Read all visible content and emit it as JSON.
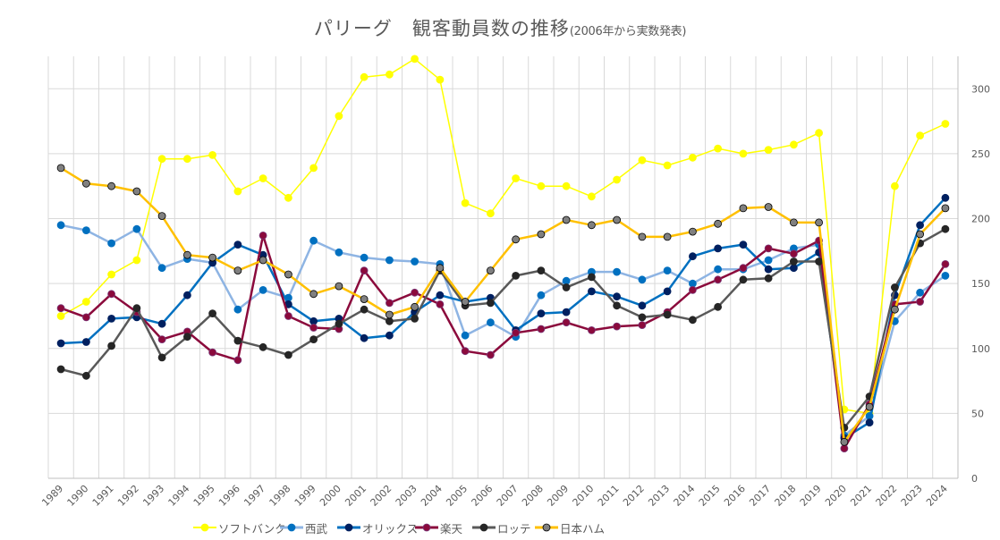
{
  "chart_data": {
    "type": "line",
    "title": "パリーグ　観客動員数の推移",
    "subtitle": "(2006年から実数発表)",
    "xlabel": "",
    "ylabel": "",
    "ylim": [
      0,
      325
    ],
    "yticks": [
      0,
      50,
      100,
      150,
      200,
      250,
      300
    ],
    "y_axis_side": "right",
    "grid": true,
    "legend_position": "bottom",
    "categories": [
      "1989",
      "1990",
      "1991",
      "1992",
      "1993",
      "1994",
      "1995",
      "1996",
      "1997",
      "1998",
      "1999",
      "2000",
      "2001",
      "2002",
      "2003",
      "2004",
      "2005",
      "2006",
      "2007",
      "2008",
      "2009",
      "2010",
      "2011",
      "2012",
      "2013",
      "2014",
      "2015",
      "2016",
      "2017",
      "2018",
      "2019",
      "2020",
      "2021",
      "2022",
      "2023",
      "2024"
    ],
    "series": [
      {
        "name": "ソフトバンク",
        "line_color": "#FFFF00",
        "marker_color": "#FFFF00",
        "marker_border": "#FFFF00",
        "line_width": 1.5,
        "values": [
          125,
          136,
          157,
          168,
          246,
          246,
          249,
          221,
          231,
          216,
          239,
          279,
          309,
          311,
          323,
          307,
          212,
          204,
          231,
          225,
          225,
          217,
          230,
          245,
          241,
          247,
          254,
          250,
          253,
          257,
          266,
          53,
          50,
          225,
          264,
          273
        ]
      },
      {
        "name": "西武",
        "line_color": "#8EB4E3",
        "marker_color": "#0070C0",
        "marker_border": "#0070C0",
        "line_width": 2.5,
        "values": [
          195,
          191,
          181,
          192,
          162,
          169,
          166,
          130,
          145,
          139,
          183,
          174,
          170,
          168,
          167,
          165,
          110,
          120,
          109,
          141,
          152,
          159,
          159,
          153,
          160,
          150,
          161,
          161,
          168,
          177,
          180,
          33,
          48,
          121,
          143,
          156
        ]
      },
      {
        "name": "オリックス",
        "line_color": "#0070C0",
        "marker_color": "#002060",
        "marker_border": "#002060",
        "line_width": 2.5,
        "values": [
          104,
          105,
          123,
          124,
          119,
          141,
          166,
          180,
          172,
          134,
          121,
          123,
          108,
          110,
          128,
          141,
          136,
          139,
          114,
          127,
          128,
          144,
          140,
          133,
          144,
          171,
          177,
          180,
          161,
          162,
          174,
          31,
          43,
          141,
          195,
          216
        ]
      },
      {
        "name": "楽天",
        "line_color": "#8B0A3C",
        "marker_color": "#8B0A3C",
        "marker_border": "#7A3A7A",
        "line_width": 2.5,
        "values": [
          131,
          124,
          142,
          128,
          107,
          113,
          97,
          91,
          187,
          125,
          116,
          115,
          160,
          135,
          143,
          134,
          98,
          95,
          112,
          115,
          120,
          114,
          117,
          118,
          128,
          145,
          153,
          162,
          177,
          173,
          183,
          23,
          57,
          134,
          136,
          165
        ]
      },
      {
        "name": "ロッテ",
        "line_color": "#595959",
        "marker_color": "#262626",
        "marker_border": "#262626",
        "line_width": 2.5,
        "values": [
          84,
          79,
          102,
          131,
          93,
          109,
          127,
          106,
          101,
          95,
          107,
          119,
          130,
          121,
          123,
          160,
          133,
          135,
          156,
          160,
          147,
          155,
          133,
          124,
          126,
          122,
          132,
          153,
          154,
          167,
          167,
          39,
          63,
          147,
          181,
          192
        ]
      },
      {
        "name": "日本ハム",
        "line_color": "#FFC000",
        "marker_color": "#808080",
        "marker_border": "#000000",
        "line_width": 2.5,
        "values": [
          239,
          227,
          225,
          221,
          202,
          172,
          170,
          160,
          168,
          157,
          142,
          148,
          138,
          126,
          132,
          162,
          136,
          160,
          184,
          188,
          199,
          195,
          199,
          186,
          186,
          190,
          196,
          208,
          209,
          197,
          197,
          28,
          55,
          130,
          188,
          208
        ]
      }
    ]
  }
}
